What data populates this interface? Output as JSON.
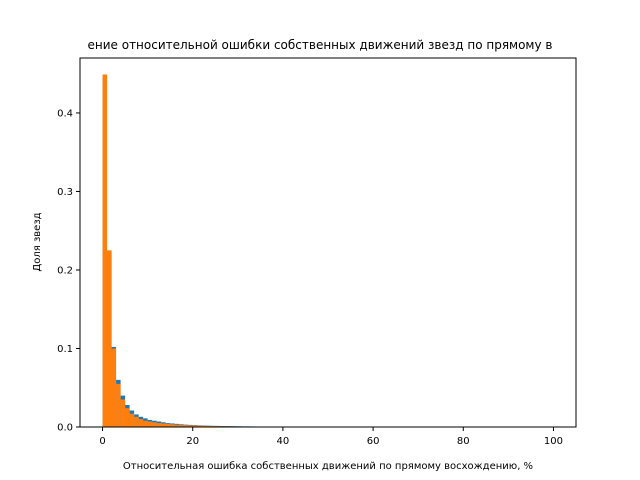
{
  "chart_data": {
    "type": "bar",
    "title": "ение относительной ошибки собственных движений звезд по прямому в",
    "xlabel": "Относительная ошибка собственных движений по прямому восхождению, %",
    "ylabel": "Доля звезд",
    "xlim": [
      -5,
      105
    ],
    "ylim": [
      0,
      0.47
    ],
    "xticks": [
      0,
      20,
      40,
      60,
      80,
      100
    ],
    "xtick_labels": [
      "0",
      "20",
      "40",
      "60",
      "80",
      "100"
    ],
    "yticks": [
      0.0,
      0.1,
      0.2,
      0.3,
      0.4
    ],
    "ytick_labels": [
      "0.0",
      "0.1",
      "0.2",
      "0.3",
      "0.4"
    ],
    "grid": false,
    "bin_width": 1,
    "series": [
      {
        "color": "#1f77b4",
        "bin_starts": [
          0,
          1,
          2,
          3,
          4,
          5,
          6,
          7,
          8,
          9,
          10,
          11,
          12,
          13,
          14,
          15,
          16,
          17,
          18,
          19,
          20,
          21,
          22,
          23,
          24,
          25,
          26,
          27,
          28,
          29,
          30,
          31,
          32,
          33,
          34
        ],
        "values": [
          0.445,
          0.222,
          0.102,
          0.06,
          0.04,
          0.028,
          0.021,
          0.016,
          0.013,
          0.011,
          0.009,
          0.008,
          0.007,
          0.006,
          0.005,
          0.0045,
          0.004,
          0.0035,
          0.003,
          0.0027,
          0.0024,
          0.0021,
          0.0019,
          0.0017,
          0.0015,
          0.0014,
          0.0013,
          0.0012,
          0.0011,
          0.001,
          0.0009,
          0.0008,
          0.0008,
          0.0007,
          0.0006
        ]
      },
      {
        "color": "#ff7f0e",
        "bin_starts": [
          0,
          1,
          2,
          3,
          4,
          5,
          6,
          7,
          8,
          9,
          10,
          11,
          12,
          13,
          14,
          15,
          16,
          17,
          18,
          19,
          20,
          21,
          22,
          23,
          24,
          25,
          26,
          27,
          28,
          29
        ],
        "values": [
          0.449,
          0.225,
          0.1,
          0.055,
          0.035,
          0.024,
          0.017,
          0.013,
          0.01,
          0.008,
          0.007,
          0.006,
          0.005,
          0.0045,
          0.004,
          0.0035,
          0.003,
          0.0027,
          0.0024,
          0.0021,
          0.0019,
          0.0017,
          0.0015,
          0.0013,
          0.0012,
          0.0011,
          0.001,
          0.0009,
          0.0008,
          0.0007
        ]
      }
    ]
  }
}
